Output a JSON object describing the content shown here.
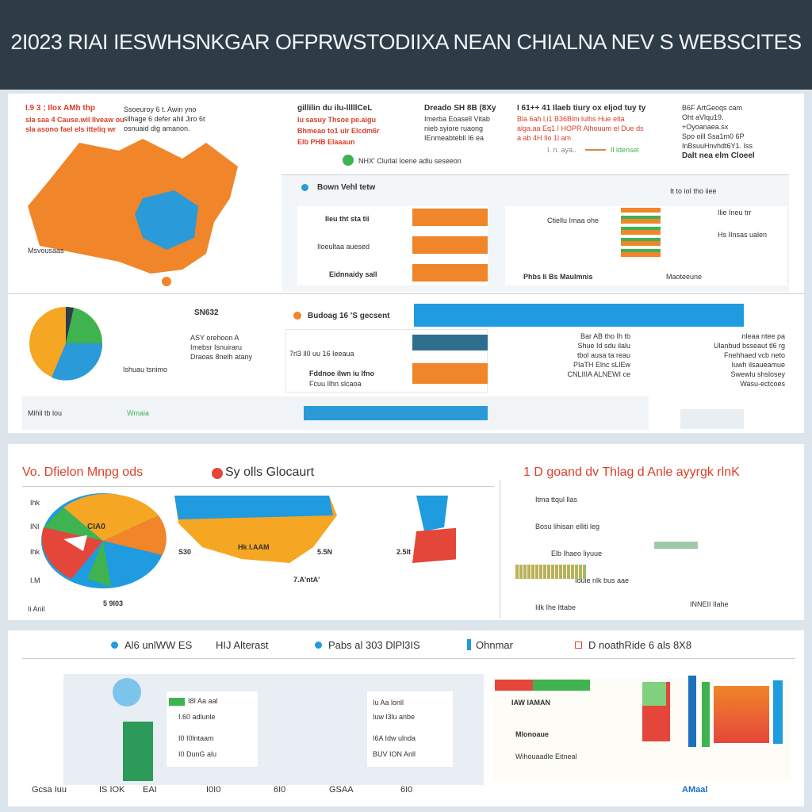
{
  "header": {
    "title": "2I023 RIAI IESWHSNKGAR OFPRWSTODIIXA NEAN CHIALNA NEV S WEBSCITES"
  },
  "top": {
    "map_note_red": "I.9 3 ; Ilox  AMh thp",
    "map_note_red2": "sla saa 4 Cause.wil Ilveaw ou",
    "map_note_red3": "sla asono fael els itteliq wr",
    "map_note": "Ssoeuroy 6 t. Awin yno",
    "map_note2": "sllhage 6 defer ahil Jiro 6t",
    "map_note3": "osnuaid dig amanon.",
    "map_legend": "Msvousaas",
    "block1": [
      "gillilin du ilu-lllllCeL",
      "lu sasuy Thsoe pe.aigu",
      "Bhmeao to1 ulr Elcdm6r",
      "Elb PHB Elaaaun"
    ],
    "block2": [
      "Dreado SH 8B (8Xy",
      "Imerba Eoasell Vitab",
      "nieb syiore ruaong",
      "IEnmeabtebll I6 ea"
    ],
    "block3": [
      "I 61++ 41 Ilaeb tiury ox eljod tuy ty",
      "Bla 6ah l,i1 B36Blm lulhs Hue elta",
      "alga.aa Eq1 I HOPR Alhouum el Due ds",
      "a ab 4H Ilo 1l am"
    ],
    "block4": [
      "B6F ArtGeoqs cam",
      "Oht aVlqu19.",
      "+Oyoanaea.sx",
      "Spo oill Ssa1m0 6P",
      "InBsuuHnvhdt6Y1. Iss",
      "Dalt nea elm Cloeel"
    ],
    "caption_center": "NHX'  Clurlal Ioene adlu seseeon",
    "caption_right_a": "I. n. aya..",
    "caption_right_b": "Il ldensel"
  },
  "panel_a": {
    "title": "Bown Vehl tetw",
    "rows": [
      "Ileu tht sta tii",
      "Iloeultaa auesed",
      "Eidnnaidy  sall"
    ],
    "right_label": "Ctiellu Imaa ohe",
    "right_rows": [
      "It to ioI tho iiee",
      "Ilie Ineu trr",
      "Hs IInsas ualen",
      "Maoteeune"
    ],
    "bottom": "Phbs Ii Bs Maulmnis"
  },
  "row2": {
    "pie_label": "SN632",
    "pie_text": [
      "ASY orehoon A",
      "Imebsr Isnuiraru",
      "Draoas 8nelh atany"
    ],
    "pie_caption": "Ishuau tsnimo",
    "bar_title": "Budoag 16 'S gecsent",
    "rows": [
      "7rl3 ll0 uu 16 Ieeaua",
      "Fddnoe ilwn iu Ifno",
      "Fcuu Ilhn slcaoa"
    ],
    "mid_text": [
      "Bar AB tho Ih tb",
      "Shue Id sdu ilalu",
      "tbol ausa ta reau",
      "PIaTH Elnc sLlEw",
      "CNLIIIA ALNEWI ce"
    ],
    "right_text": [
      "nleaa ntee pa",
      "Ulanbud bsseaut tl6 rg",
      "Fnehhaed vcb neto",
      "Iuwh ilsaueamue",
      "Swewlu shslosey",
      "Wasu-ectcoes"
    ],
    "footer": "Mihil tb lou",
    "footer2": "Wmaia"
  },
  "section3": {
    "title_left": "Vo. Dfielon Mnpg ods",
    "title_mid": "Sy olls Glocaurt",
    "title_right": "1 D goand  dv Thlag d  Anle ayyrgk rlnK",
    "axis": [
      "Ihk",
      "INI",
      "Ihk",
      "I.M"
    ],
    "pie_val": "CIA0",
    "labels": [
      "S30",
      "Hk  I.AAM",
      "5.5N",
      "2.5lt",
      "7.A'ntA'",
      "5 9I03",
      "Ii Anil"
    ],
    "right_rows": [
      "Itma ttqul llas",
      "Bosu lihisan elliti leg",
      "Elb  Ihaeo liyuue",
      "Idule nlk bus aae",
      "Iilk Ihe Ittabe"
    ],
    "right_footer": "INNEII Ilahe"
  },
  "section4": {
    "legend": [
      "Al6 unlWW  ES",
      "HIJ Alterast",
      "Pabs al 303 DlPl3IS",
      "Ohnmar",
      "D noathRide  6 als 8X8"
    ],
    "rows_left": [
      "I8I Aa  aal",
      "I.60  adlunle",
      "I0  I0lntaam",
      "I0  DunG  alu"
    ],
    "rows_mid": [
      "Iu Aa  lonll",
      "Iuw  l3lu anbe",
      "I6A  Idw  ulnda",
      "BUV  ION  Anll"
    ],
    "right_rows": [
      "IAW IAMAN",
      "Mlonoaue",
      "Wihouaadle Eitneal"
    ],
    "footer": [
      "Gcsa Iuu",
      "IS  IOK",
      "EAI",
      "I0I0",
      "6I0",
      "GSAA",
      "6I0",
      "AMaal"
    ]
  },
  "colors": {
    "header": "#2e3c48",
    "orange": "#f0852a",
    "blue": "#2a9ad8",
    "red": "#e5463a",
    "green": "#3fb34f"
  }
}
